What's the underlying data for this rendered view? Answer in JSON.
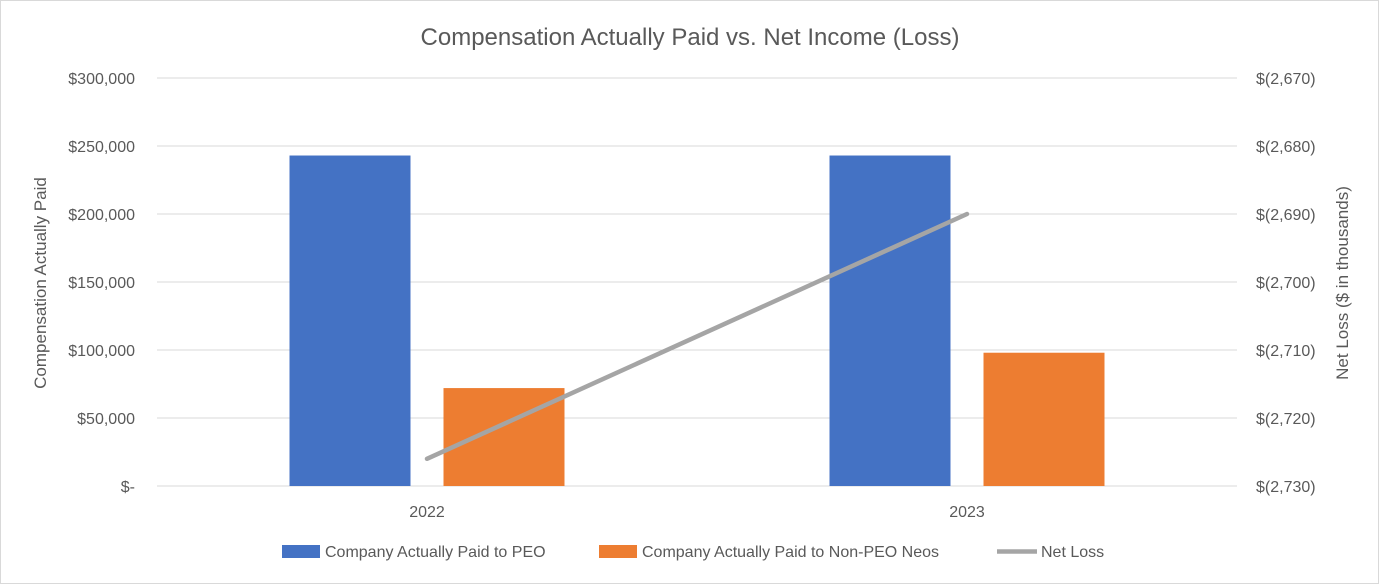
{
  "chart_data": {
    "type": "bar",
    "title": "Compensation Actually Paid vs. Net Income (Loss)",
    "categories": [
      "2022",
      "2023"
    ],
    "ylabel": "Compensation  Actually Paid",
    "y2label": "Net Loss ($ in thousands)",
    "ylim": [
      0,
      300000
    ],
    "y2lim": [
      -2730,
      -2670
    ],
    "yticks": [
      {
        "value": 0,
        "label": "$-"
      },
      {
        "value": 50000,
        "label": "$50,000"
      },
      {
        "value": 100000,
        "label": "$100,000"
      },
      {
        "value": 150000,
        "label": "$150,000"
      },
      {
        "value": 200000,
        "label": "$200,000"
      },
      {
        "value": 250000,
        "label": "$250,000"
      },
      {
        "value": 300000,
        "label": "$300,000"
      }
    ],
    "y2ticks": [
      {
        "value": -2730,
        "label": "$(2,730)"
      },
      {
        "value": -2720,
        "label": "$(2,720)"
      },
      {
        "value": -2710,
        "label": "$(2,710)"
      },
      {
        "value": -2700,
        "label": "$(2,700)"
      },
      {
        "value": -2690,
        "label": "$(2,690)"
      },
      {
        "value": -2680,
        "label": "$(2,680)"
      },
      {
        "value": -2670,
        "label": "$(2,670)"
      }
    ],
    "grid": true,
    "legend_position": "bottom",
    "series": [
      {
        "name": "Company Actually Paid to PEO",
        "kind": "bar",
        "axis": "left",
        "color": "#4472c4",
        "values": [
          243000,
          243000
        ]
      },
      {
        "name": "Company Actually Paid to Non-PEO Neos",
        "kind": "bar",
        "axis": "left",
        "color": "#ed7d31",
        "values": [
          72000,
          98000
        ]
      },
      {
        "name": "Net Loss",
        "kind": "line",
        "axis": "right",
        "color": "#a5a5a5",
        "values": [
          -2726,
          -2690
        ]
      }
    ]
  }
}
